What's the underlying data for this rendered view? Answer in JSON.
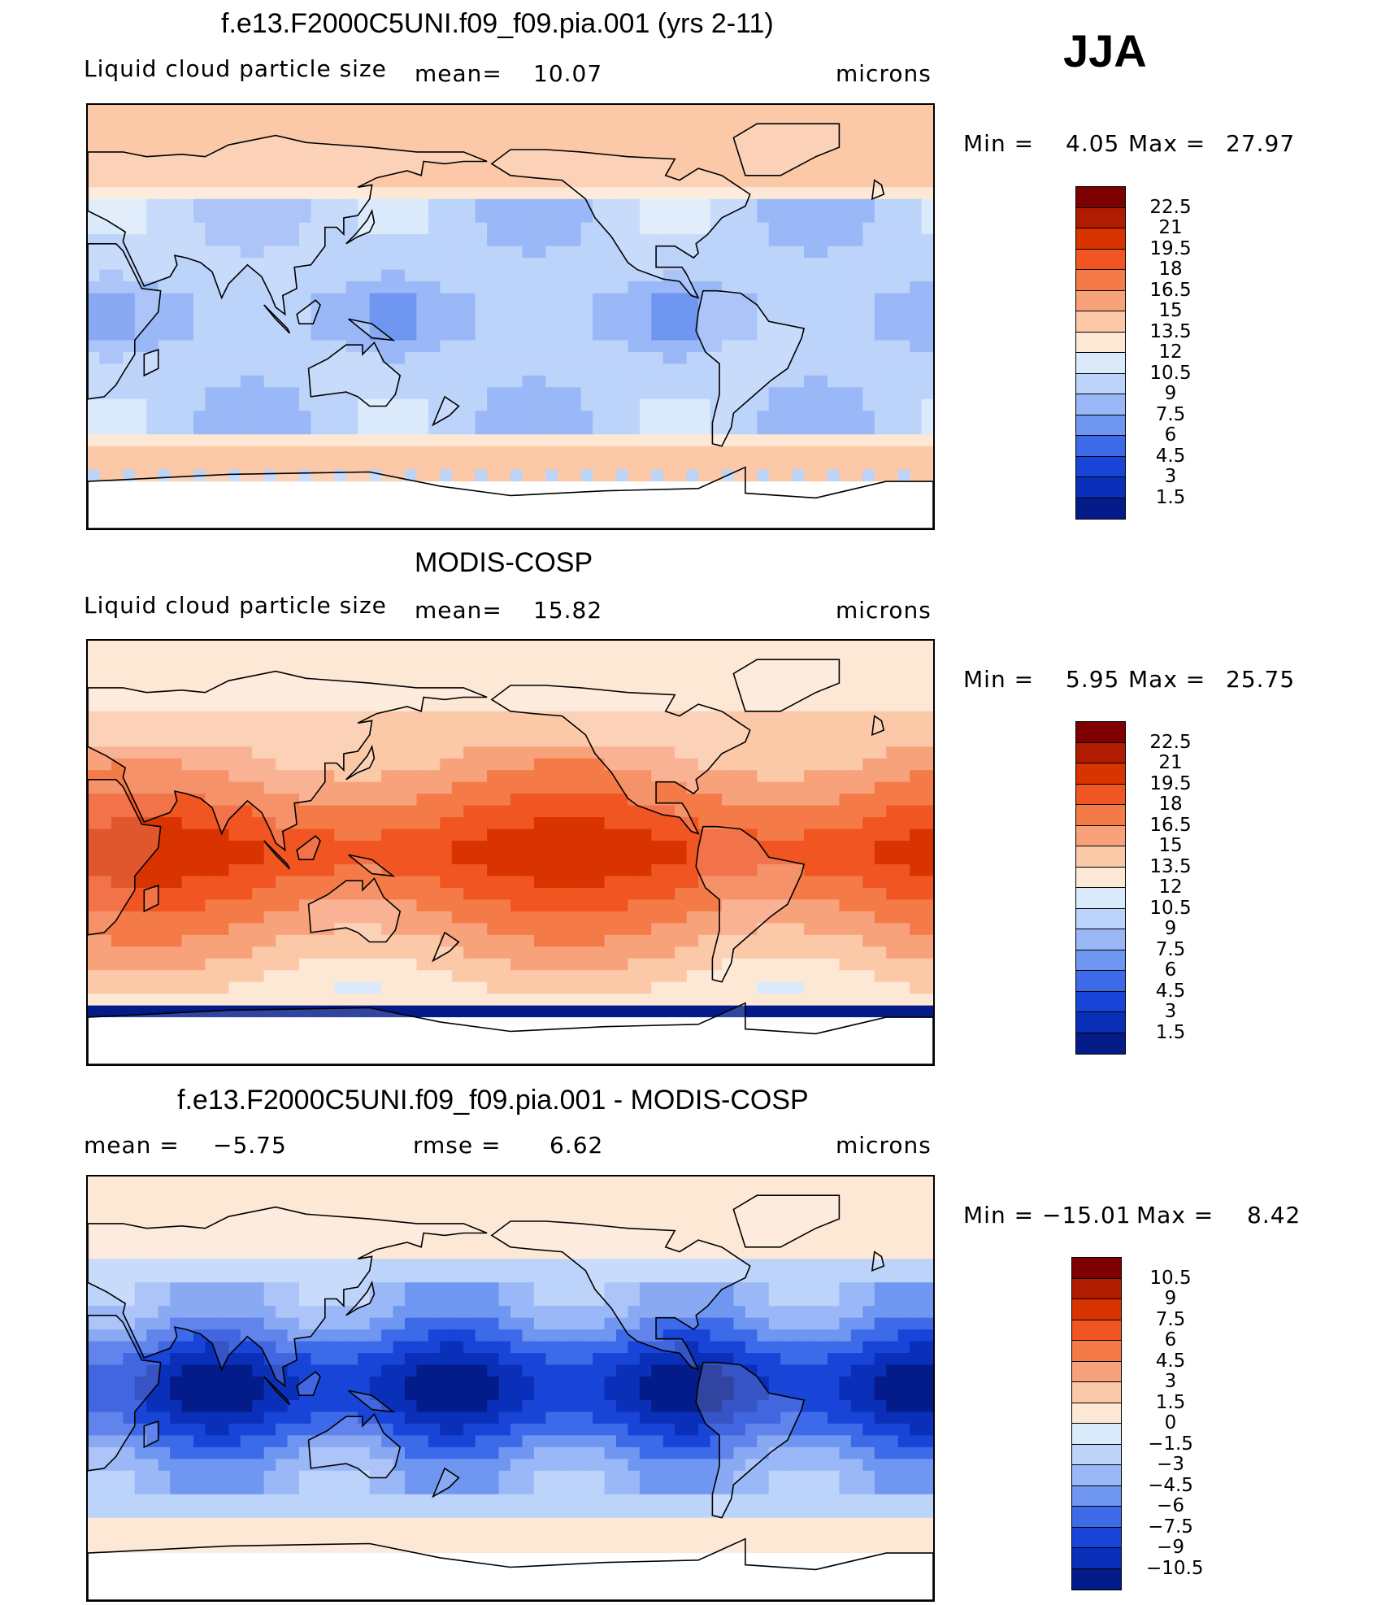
{
  "season": "JJA",
  "panels": [
    {
      "id": "model",
      "title": "f.e13.F2000C5UNI.f09_f09.pia.001 (yrs 2-11)",
      "left_label": "Liquid cloud particle size",
      "stat_label": "mean=",
      "stat_value": "10.07",
      "units": "microns",
      "min_label": "Min  =",
      "min_value": "4.05",
      "max_label": "Max  =",
      "max_value": "27.97",
      "colorbar": [
        "22.5",
        "21",
        "19.5",
        "18",
        "16.5",
        "15",
        "13.5",
        "12",
        "10.5",
        "9",
        "7.5",
        "6",
        "4.5",
        "3",
        "1.5"
      ]
    },
    {
      "id": "obs",
      "title": "MODIS-COSP",
      "left_label": "Liquid cloud particle size",
      "stat_label": "mean=",
      "stat_value": "15.82",
      "units": "microns",
      "min_label": "Min  =",
      "min_value": "5.95",
      "max_label": "Max  =",
      "max_value": "25.75",
      "colorbar": [
        "22.5",
        "21",
        "19.5",
        "18",
        "16.5",
        "15",
        "13.5",
        "12",
        "10.5",
        "9",
        "7.5",
        "6",
        "4.5",
        "3",
        "1.5"
      ]
    },
    {
      "id": "diff",
      "title": "f.e13.F2000C5UNI.f09_f09.pia.001 - MODIS-COSP",
      "left_label": "mean  =",
      "left_value": "−5.75",
      "stat_label": "rmse  =",
      "stat_value": "6.62",
      "units": "microns",
      "min_label": "Min  =",
      "min_value": "−15.01",
      "max_label": "Max  =",
      "max_value": "8.42",
      "colorbar": [
        "10.5",
        "9",
        "7.5",
        "6",
        "4.5",
        "3",
        "1.5",
        "0",
        "−1.5",
        "−3",
        "−4.5",
        "−6",
        "−7.5",
        "−9",
        "−10.5"
      ]
    }
  ],
  "palette": [
    "#7f0000",
    "#b01c00",
    "#d93300",
    "#f05522",
    "#f47b48",
    "#f8a27c",
    "#fbc8a8",
    "#fde8d6",
    "#dbeafb",
    "#bcd3fa",
    "#9ab8f7",
    "#6f96f0",
    "#3d6ae8",
    "#1845d8",
    "#0a2fb8",
    "#041c8a",
    "#000c66"
  ]
}
